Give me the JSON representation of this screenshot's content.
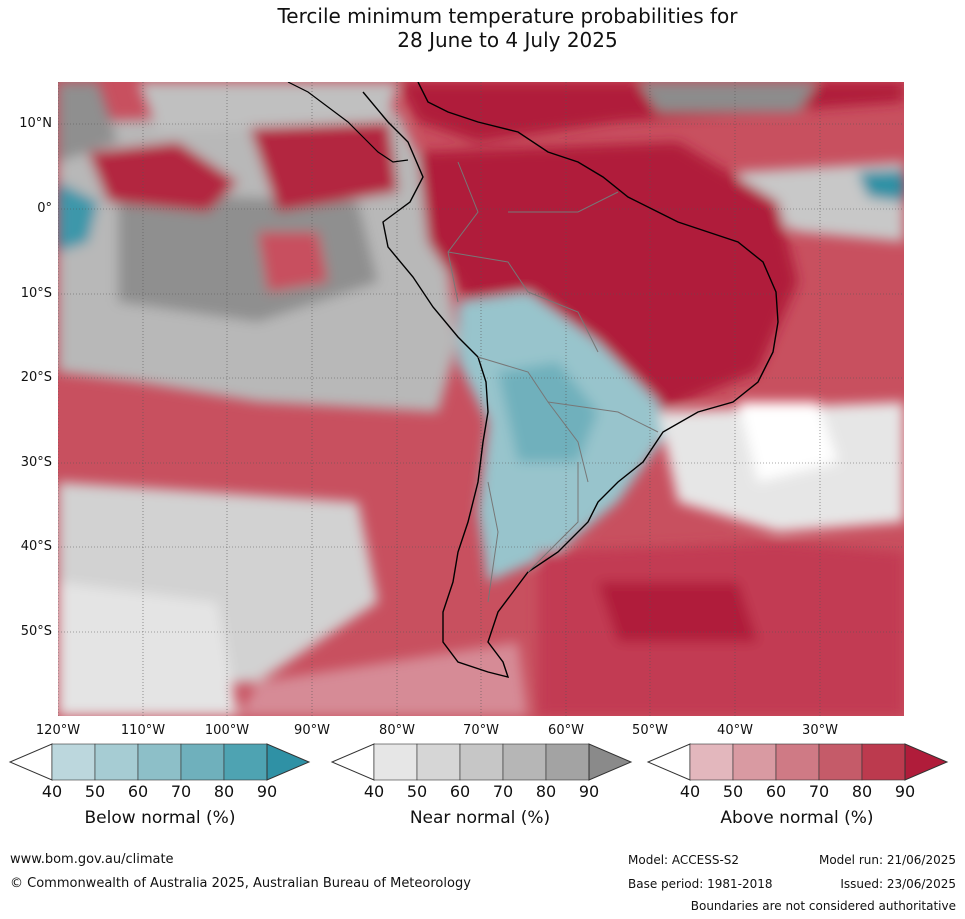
{
  "title_line1": "Tercile minimum temperature probabilities for",
  "title_line2": "28 June to 4 July 2025",
  "lat_ticks": [
    "10°N",
    "0°",
    "10°S",
    "20°S",
    "30°S",
    "40°S",
    "50°S"
  ],
  "lon_ticks": [
    "120°W",
    "110°W",
    "100°W",
    "90°W",
    "80°W",
    "70°W",
    "60°W",
    "50°W",
    "40°W",
    "30°W"
  ],
  "colorbars": [
    {
      "label": "Below normal (%)",
      "ticks": [
        "40",
        "50",
        "60",
        "70",
        "80",
        "90"
      ],
      "colors": [
        "#bcd7dd",
        "#a6ccd3",
        "#8dbfc8",
        "#6fb0bc",
        "#4ea3b2",
        "#2f91a5"
      ]
    },
    {
      "label": "Near normal (%)",
      "ticks": [
        "40",
        "50",
        "60",
        "70",
        "80",
        "90"
      ],
      "colors": [
        "#e6e6e6",
        "#d6d6d6",
        "#c6c6c6",
        "#b6b6b6",
        "#a3a3a3",
        "#8a8a8a"
      ]
    },
    {
      "label": "Above normal (%)",
      "ticks": [
        "40",
        "50",
        "60",
        "70",
        "80",
        "90"
      ],
      "colors": [
        "#e3b7bd",
        "#d99aa2",
        "#cf7a85",
        "#c55b69",
        "#bc3a4e",
        "#b01c3a"
      ]
    }
  ],
  "footer": {
    "website": "www.bom.gov.au/climate",
    "copyright": "© Commonwealth of Australia 2025, Australian Bureau of Meteorology",
    "model": "Model: ACCESS-S2",
    "base_period": "Base period: 1981-2018",
    "model_run": "Model run: 21/06/2025",
    "issued": "Issued: 23/06/2025",
    "disclaimer": "Boundaries are not considered authoritative"
  }
}
